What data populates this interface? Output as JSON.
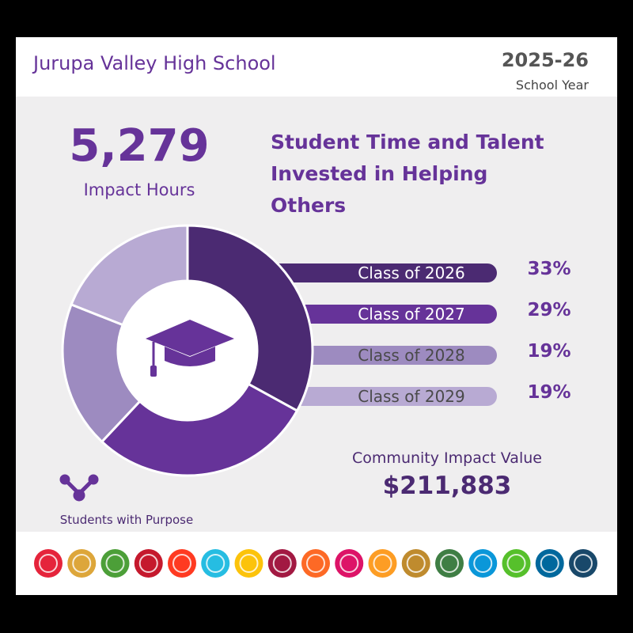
{
  "header": {
    "school": "Jurupa Valley High School",
    "year": "2025-26",
    "year_label": "School Year"
  },
  "hours": {
    "value": "5,279",
    "label": "Impact Hours"
  },
  "chart_data": {
    "type": "donut",
    "title": "Student Time and Talent Invested in Helping Others",
    "categories": [
      "Class of 2026",
      "Class of 2027",
      "Class of 2028",
      "Class of 2029"
    ],
    "values": [
      33,
      29,
      19,
      19
    ],
    "value_labels": [
      "33%",
      "29%",
      "19%",
      "19%"
    ],
    "colors": [
      "#4b2a72",
      "#663399",
      "#9d8bc0",
      "#b8aad3"
    ]
  },
  "community": {
    "label": "Community Impact Value",
    "value": "$211,883"
  },
  "brand": "Students with Purpose"
}
